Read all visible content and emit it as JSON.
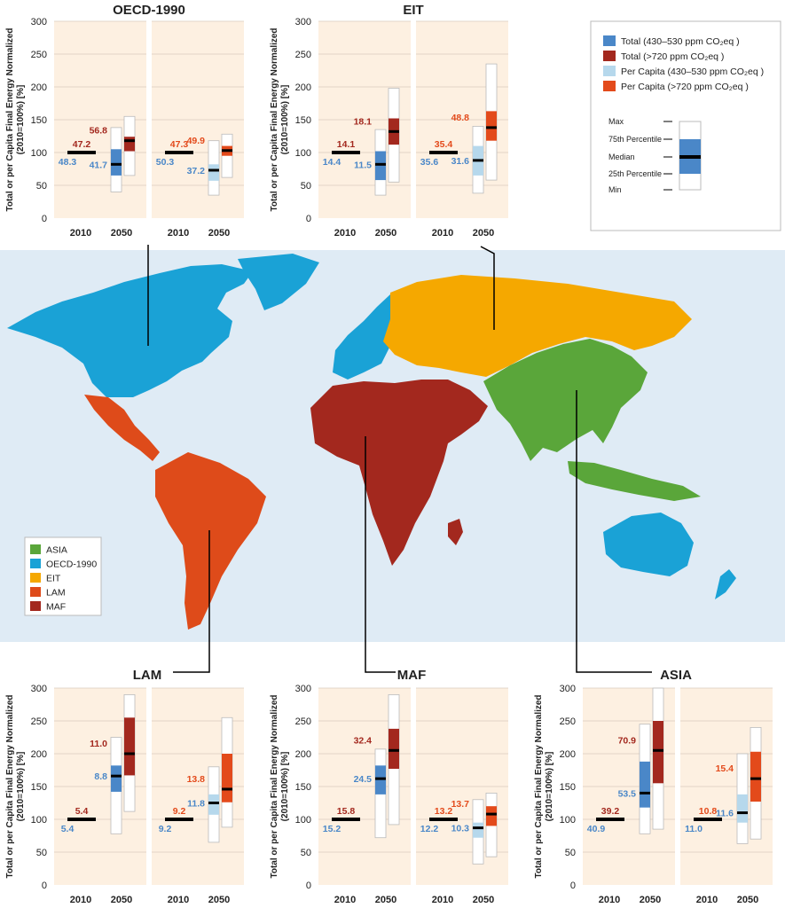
{
  "colors": {
    "total_low": "#4a87c8",
    "total_high": "#a3281e",
    "pc_low": "#b6d8ec",
    "pc_high": "#e34a1b",
    "panel_bg": "#fdf0e1",
    "map_bg": "#dfebf5",
    "region_asia": "#5aa63a",
    "region_oecd": "#1aa2d6",
    "region_eit": "#f5a800",
    "region_lam": "#de4b1a",
    "region_maf": "#a3281e",
    "label_low": "#4a87c8",
    "label_high": "#a3281e",
    "label_pc_high": "#e34a1b"
  },
  "legend": {
    "items": [
      "Total (430–530 ppm CO₂eq )",
      "Total (>720 ppm CO₂eq )",
      "Per Capita (430–530 ppm CO₂eq )",
      "Per Capita (>720 ppm CO₂eq )"
    ],
    "box": {
      "max": "Max",
      "p75": "75th Percentile",
      "median": "Median",
      "p25": "25th Percentile",
      "min": "Min"
    }
  },
  "map_legend": {
    "items": [
      "ASIA",
      "OECD-1990",
      "EIT",
      "LAM",
      "MAF"
    ]
  },
  "chart_data": [
    {
      "type": "box",
      "title": "OECD-1990",
      "ylabel": "Total or per Capita Final Energy Normalized (2010=100%) [%]",
      "ylim": [
        0,
        300
      ],
      "yticks": [
        0,
        50,
        100,
        150,
        200,
        250,
        300
      ],
      "categories": [
        "2010",
        "2050",
        "2010",
        "2050"
      ],
      "total": {
        "base_2010": 100,
        "labels_2010": {
          "low": "48.3",
          "high": "47.2"
        },
        "labels_2050": {
          "low": "41.7",
          "high": "56.8"
        },
        "low": {
          "min": 40,
          "q1": 65,
          "median": 82,
          "q3": 105,
          "max": 138
        },
        "high": {
          "min": 65,
          "q1": 102,
          "median": 118,
          "q3": 124,
          "max": 155
        }
      },
      "per_capita": {
        "base_2010": 100,
        "labels_2010": {
          "low": "50.3",
          "high": "47.3"
        },
        "labels_2050": {
          "low": "37.2",
          "high": "49.9"
        },
        "low": {
          "min": 35,
          "q1": 57,
          "median": 73,
          "q3": 82,
          "max": 118
        },
        "high": {
          "min": 62,
          "q1": 95,
          "median": 103,
          "q3": 110,
          "max": 128
        }
      }
    },
    {
      "type": "box",
      "title": "EIT",
      "ylabel": "Total or per Capita Final Energy Normalized (2010=100%) [%]",
      "ylim": [
        0,
        300
      ],
      "yticks": [
        0,
        50,
        100,
        150,
        200,
        250,
        300
      ],
      "categories": [
        "2010",
        "2050",
        "2010",
        "2050"
      ],
      "total": {
        "base_2010": 100,
        "labels_2010": {
          "low": "14.4",
          "high": "14.1"
        },
        "labels_2050": {
          "low": "11.5",
          "high": "18.1"
        },
        "low": {
          "min": 35,
          "q1": 58,
          "median": 82,
          "q3": 102,
          "max": 135
        },
        "high": {
          "min": 55,
          "q1": 112,
          "median": 132,
          "q3": 152,
          "max": 198
        }
      },
      "per_capita": {
        "base_2010": 100,
        "labels_2010": {
          "low": "35.6",
          "high": "35.4"
        },
        "labels_2050": {
          "low": "31.6",
          "high": "48.8"
        },
        "low": {
          "min": 38,
          "q1": 65,
          "median": 88,
          "q3": 110,
          "max": 140
        },
        "high": {
          "min": 58,
          "q1": 118,
          "median": 138,
          "q3": 163,
          "max": 235
        }
      }
    },
    {
      "type": "box",
      "title": "LAM",
      "ylabel": "Total or per Capita Final Energy Normalized (2010=100%) [%]",
      "ylim": [
        0,
        300
      ],
      "yticks": [
        0,
        50,
        100,
        150,
        200,
        250,
        300
      ],
      "categories": [
        "2010",
        "2050",
        "2010",
        "2050"
      ],
      "total": {
        "base_2010": 100,
        "labels_2010": {
          "low": "5.4",
          "high": "5.4"
        },
        "labels_2050": {
          "low": "8.8",
          "high": "11.0"
        },
        "low": {
          "min": 78,
          "q1": 142,
          "median": 166,
          "q3": 182,
          "max": 225
        },
        "high": {
          "min": 112,
          "q1": 167,
          "median": 200,
          "q3": 255,
          "max": 290
        }
      },
      "per_capita": {
        "base_2010": 100,
        "labels_2010": {
          "low": "9.2",
          "high": "9.2"
        },
        "labels_2050": {
          "low": "11.8",
          "high": "13.8"
        },
        "low": {
          "min": 65,
          "q1": 107,
          "median": 125,
          "q3": 138,
          "max": 180
        },
        "high": {
          "min": 88,
          "q1": 126,
          "median": 146,
          "q3": 200,
          "max": 255
        }
      }
    },
    {
      "type": "box",
      "title": "MAF",
      "ylabel": "Total or per Capita Final Energy Normalized (2010=100%) [%]",
      "ylim": [
        0,
        300
      ],
      "yticks": [
        0,
        50,
        100,
        150,
        200,
        250,
        300
      ],
      "categories": [
        "2010",
        "2050",
        "2010",
        "2050"
      ],
      "total": {
        "base_2010": 100,
        "labels_2010": {
          "low": "15.2",
          "high": "15.8"
        },
        "labels_2050": {
          "low": "24.5",
          "high": "32.4"
        },
        "low": {
          "min": 72,
          "q1": 138,
          "median": 162,
          "q3": 182,
          "max": 207
        },
        "high": {
          "min": 92,
          "q1": 177,
          "median": 205,
          "q3": 238,
          "max": 290
        }
      },
      "per_capita": {
        "base_2010": 100,
        "labels_2010": {
          "low": "12.2",
          "high": "13.2"
        },
        "labels_2050": {
          "low": "10.3",
          "high": "13.7"
        },
        "low": {
          "min": 32,
          "q1": 72,
          "median": 87,
          "q3": 95,
          "max": 130
        },
        "high": {
          "min": 43,
          "q1": 90,
          "median": 108,
          "q3": 120,
          "max": 140
        }
      }
    },
    {
      "type": "box",
      "title": "ASIA",
      "ylabel": "Total or per Capita Final Energy Normalized (2010=100%) [%]",
      "ylim": [
        0,
        300
      ],
      "yticks": [
        0,
        50,
        100,
        150,
        200,
        250,
        300
      ],
      "categories": [
        "2010",
        "2050",
        "2010",
        "2050"
      ],
      "total": {
        "base_2010": 100,
        "labels_2010": {
          "low": "40.9",
          "high": "39.2"
        },
        "labels_2050": {
          "low": "53.5",
          "high": "70.9"
        },
        "low": {
          "min": 78,
          "q1": 118,
          "median": 140,
          "q3": 188,
          "max": 245
        },
        "high": {
          "min": 85,
          "q1": 155,
          "median": 205,
          "q3": 250,
          "max": 300
        }
      },
      "per_capita": {
        "base_2010": 100,
        "labels_2010": {
          "low": "11.0",
          "high": "10.8"
        },
        "labels_2050": {
          "low": "11.6",
          "high": "15.4"
        },
        "low": {
          "min": 63,
          "q1": 95,
          "median": 110,
          "q3": 138,
          "max": 200
        },
        "high": {
          "min": 70,
          "q1": 127,
          "median": 162,
          "q3": 203,
          "max": 240
        }
      }
    }
  ]
}
